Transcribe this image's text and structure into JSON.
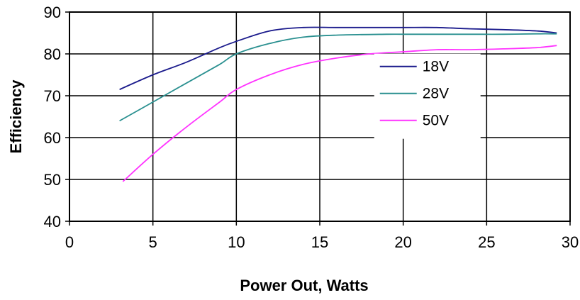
{
  "chart_data": {
    "type": "line",
    "xlabel": "Power Out, Watts",
    "ylabel": "Efficiency",
    "xlim": [
      0,
      30
    ],
    "ylim": [
      40,
      90
    ],
    "x_ticks": [
      "0",
      "5",
      "10",
      "15",
      "20",
      "25",
      "30"
    ],
    "y_ticks": [
      "40",
      "50",
      "60",
      "70",
      "80",
      "90"
    ],
    "grid": true,
    "legend_position": "right",
    "series": [
      {
        "name": "18V",
        "color": "#1a1a8c",
        "x": [
          3,
          5,
          7,
          9,
          10,
          12,
          14,
          16,
          18,
          20,
          22,
          24,
          26,
          28,
          29.2
        ],
        "y": [
          71.5,
          75,
          78,
          81.5,
          83,
          85.5,
          86.3,
          86.3,
          86.3,
          86.3,
          86.3,
          86,
          85.8,
          85.5,
          85
        ]
      },
      {
        "name": "28V",
        "color": "#2a9090",
        "x": [
          3,
          5,
          7,
          9,
          10,
          12,
          14,
          16.2,
          19,
          20,
          22,
          24,
          26,
          28,
          29.2
        ],
        "y": [
          64,
          68.5,
          73,
          77.5,
          80,
          82.5,
          84,
          84.5,
          84.7,
          84.7,
          84.7,
          84.7,
          84.7,
          84.8,
          84.8
        ]
      },
      {
        "name": "50V",
        "color": "#ff33ff",
        "x": [
          3.2,
          5,
          7,
          9,
          10,
          12,
          14,
          16,
          18,
          20,
          22,
          24,
          26,
          28,
          29.2
        ],
        "y": [
          49.5,
          56,
          62.5,
          68.5,
          71.5,
          75,
          77.5,
          79,
          80,
          80.5,
          81,
          81,
          81.2,
          81.5,
          82
        ]
      }
    ]
  }
}
